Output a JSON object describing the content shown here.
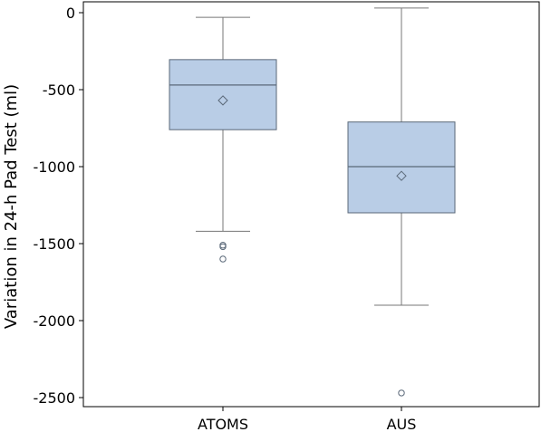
{
  "chart_data": {
    "type": "box",
    "title": "",
    "xlabel": "",
    "ylabel": "Variation in 24-h Pad Test (ml)",
    "ylim": [
      -2550,
      60
    ],
    "yticks": [
      0,
      -500,
      -1000,
      -1500,
      -2000,
      -2500
    ],
    "ytick_labels": [
      "0",
      "-500",
      "-1000",
      "-1500",
      "-2000",
      "-2500"
    ],
    "grid": false,
    "categories": [
      "ATOMS",
      "AUS"
    ],
    "boxes": [
      {
        "name": "ATOMS",
        "whisker_high": -30,
        "q3": -305,
        "median": -470,
        "q1": -760,
        "whisker_low": -1420,
        "mean": -570,
        "outliers": [
          -1510,
          -1520,
          -1600
        ]
      },
      {
        "name": "AUS",
        "whisker_high": 30,
        "q3": -710,
        "median": -1000,
        "q1": -1300,
        "whisker_low": -1900,
        "mean": -1060,
        "outliers": [
          -2470
        ]
      }
    ],
    "colors": {
      "box_fill": "#b9cde6",
      "box_stroke": "#5a6878",
      "whisker": "#777777",
      "axis": "#000000"
    }
  }
}
